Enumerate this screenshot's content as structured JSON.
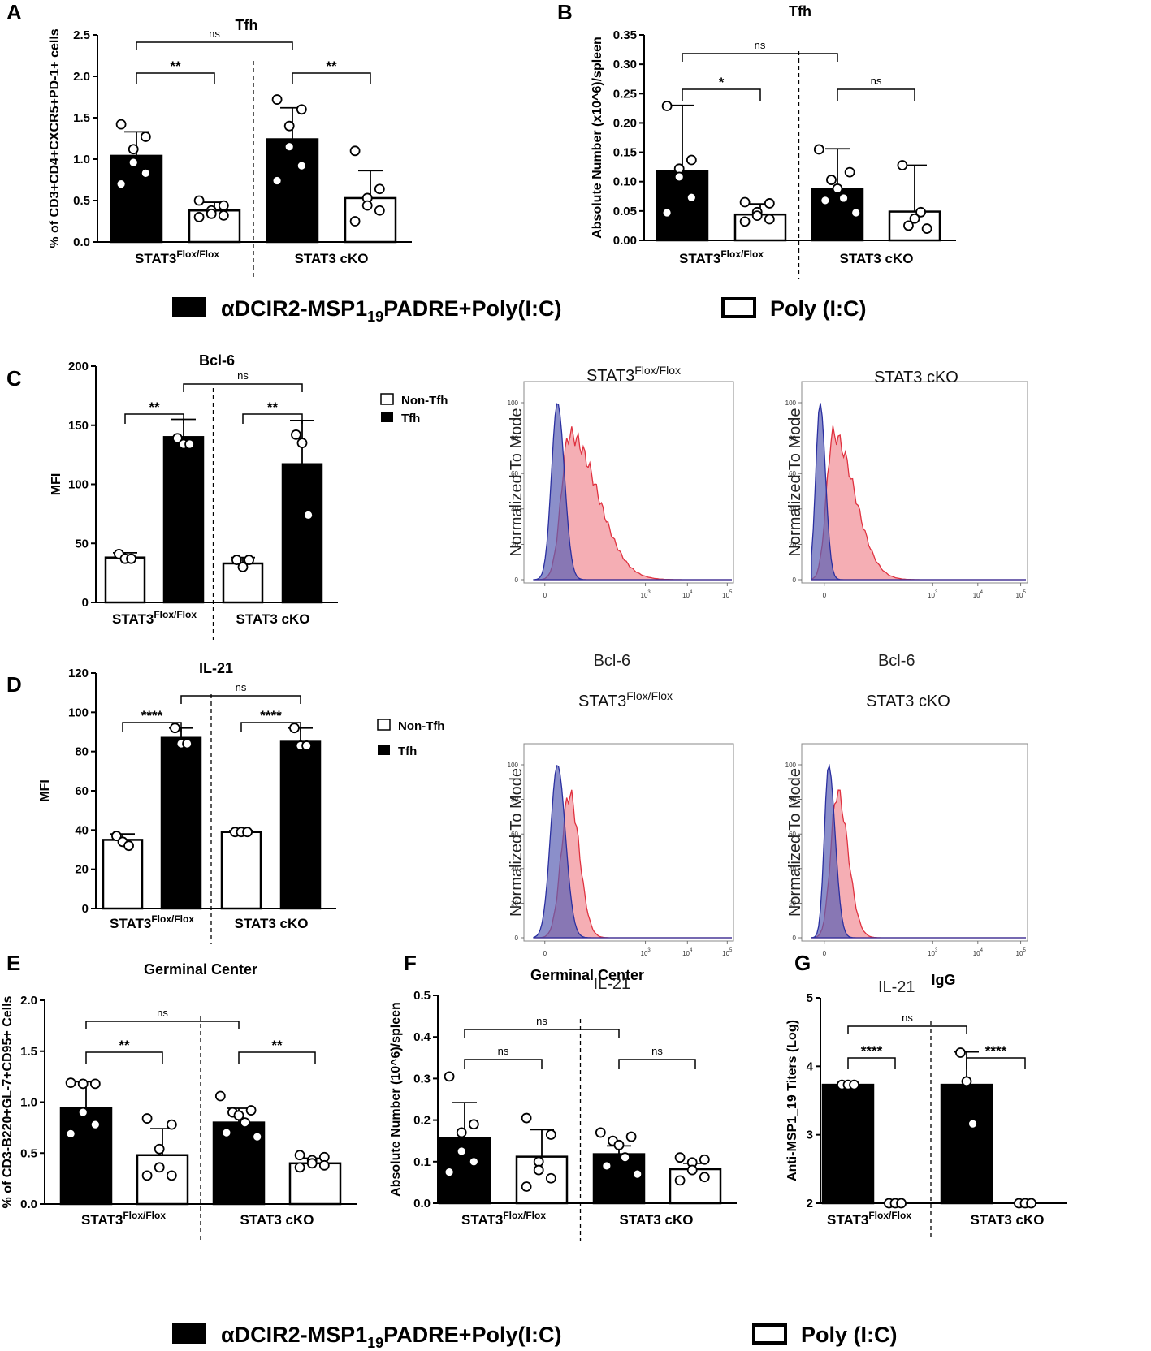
{
  "legend_main": {
    "filled_label": "αDCIR2-MSP1",
    "filled_sub": "19",
    "filled_suffix": "PADRE+Poly(I:C)",
    "open_label": "Poly (I:C)"
  },
  "legend_cd": {
    "open": "Non-Tfh",
    "filled": "Tfh"
  },
  "colors": {
    "bar_filled": "#000000",
    "bar_open": "#ffffff",
    "flow_blue": "#5a5fb3",
    "flow_red": "#f0838c",
    "flow_overlap": "#7b4f8e"
  },
  "chart_data": [
    {
      "id": "A",
      "panel": "A",
      "type": "bar",
      "title": "Tfh",
      "ylabel": "% of CD3+CD4+CXCR5+PD-1+ cells",
      "ylim": [
        0,
        2.5
      ],
      "yticks": [
        "0.0",
        "0.5",
        "1.0",
        "1.5",
        "2.0",
        "2.5"
      ],
      "groups": [
        "STAT3",
        "STAT3 cKO"
      ],
      "group_sup": [
        "Flox/Flox",
        ""
      ],
      "bars": [
        {
          "fill": "black",
          "mean": 1.04,
          "sd": 0.29,
          "points": [
            1.42,
            1.27,
            1.12,
            0.96,
            0.83,
            0.7
          ]
        },
        {
          "fill": "white",
          "mean": 0.38,
          "sd": 0.1,
          "points": [
            0.5,
            0.44,
            0.38,
            0.34,
            0.32,
            0.3
          ]
        },
        {
          "fill": "black",
          "mean": 1.24,
          "sd": 0.38,
          "points": [
            1.72,
            1.6,
            1.4,
            1.15,
            0.92,
            0.74
          ]
        },
        {
          "fill": "white",
          "mean": 0.53,
          "sd": 0.33,
          "points": [
            1.1,
            0.64,
            0.53,
            0.44,
            0.38,
            0.25
          ]
        }
      ],
      "comparisons": [
        {
          "from": 0,
          "to": 1,
          "label": "**"
        },
        {
          "from": 2,
          "to": 3,
          "label": "**"
        },
        {
          "from": 0,
          "to": 2,
          "label": "ns"
        }
      ]
    },
    {
      "id": "B",
      "panel": "B",
      "type": "bar",
      "title": "Tfh",
      "ylabel": "Absolute Number (x10^6)/spleen",
      "ylim": [
        0,
        0.35
      ],
      "yticks": [
        "0.00",
        "0.05",
        "0.10",
        "0.15",
        "0.20",
        "0.25",
        "0.30",
        "0.35"
      ],
      "groups": [
        "STAT3",
        "STAT3 cKO"
      ],
      "group_sup": [
        "Flox/Flox",
        ""
      ],
      "bars": [
        {
          "fill": "black",
          "mean": 0.118,
          "sd": 0.112,
          "points": [
            0.229,
            0.137,
            0.122,
            0.108,
            0.073,
            0.047
          ]
        },
        {
          "fill": "white",
          "mean": 0.044,
          "sd": 0.018,
          "points": [
            0.065,
            0.063,
            0.048,
            0.042,
            0.036,
            0.032
          ]
        },
        {
          "fill": "black",
          "mean": 0.088,
          "sd": 0.068,
          "points": [
            0.155,
            0.116,
            0.103,
            0.088,
            0.072,
            0.068,
            0.047
          ]
        },
        {
          "fill": "white",
          "mean": 0.049,
          "sd": 0.079,
          "points": [
            0.128,
            0.048,
            0.037,
            0.025,
            0.02
          ]
        }
      ],
      "comparisons": [
        {
          "from": 0,
          "to": 1,
          "label": "*"
        },
        {
          "from": 2,
          "to": 3,
          "label": "ns"
        },
        {
          "from": 0,
          "to": 2,
          "label": "ns"
        }
      ]
    },
    {
      "id": "C",
      "panel": "C",
      "type": "bar",
      "title": "Bcl-6",
      "ylabel": "MFI",
      "ylim": [
        0,
        200
      ],
      "yticks": [
        "0",
        "50",
        "100",
        "150",
        "200"
      ],
      "groups": [
        "STAT3",
        "STAT3 cKO"
      ],
      "group_sup": [
        "Flox/Flox",
        ""
      ],
      "bars": [
        {
          "fill": "white",
          "mean": 38,
          "sd": 4,
          "points": [
            41,
            37,
            37
          ]
        },
        {
          "fill": "black",
          "mean": 140,
          "sd": 15,
          "points": [
            139,
            134,
            134
          ]
        },
        {
          "fill": "white",
          "mean": 33,
          "sd": 5,
          "points": [
            36,
            30,
            36
          ]
        },
        {
          "fill": "black",
          "mean": 117,
          "sd": 37,
          "points": [
            142,
            135,
            74
          ]
        }
      ],
      "comparisons": [
        {
          "from": 0,
          "to": 1,
          "label": "**"
        },
        {
          "from": 2,
          "to": 3,
          "label": "**"
        },
        {
          "from": 1,
          "to": 3,
          "label": "ns"
        }
      ]
    },
    {
      "id": "D",
      "panel": "D",
      "type": "bar",
      "title": "IL-21",
      "ylabel": "MFI",
      "ylim": [
        0,
        120
      ],
      "yticks": [
        "0",
        "20",
        "40",
        "60",
        "80",
        "100",
        "120"
      ],
      "groups": [
        "STAT3",
        "STAT3 cKO"
      ],
      "group_sup": [
        "Flox/Flox",
        ""
      ],
      "bars": [
        {
          "fill": "white",
          "mean": 35,
          "sd": 3,
          "points": [
            37,
            34,
            32
          ]
        },
        {
          "fill": "black",
          "mean": 87,
          "sd": 5,
          "points": [
            92,
            84,
            84
          ]
        },
        {
          "fill": "white",
          "mean": 39,
          "sd": 0.7,
          "points": [
            39,
            39,
            39
          ]
        },
        {
          "fill": "black",
          "mean": 85,
          "sd": 7,
          "points": [
            92,
            83,
            83
          ]
        }
      ],
      "comparisons": [
        {
          "from": 0,
          "to": 1,
          "label": "****"
        },
        {
          "from": 2,
          "to": 3,
          "label": "****"
        },
        {
          "from": 1,
          "to": 3,
          "label": "ns"
        }
      ]
    },
    {
      "id": "E",
      "panel": "E",
      "type": "bar",
      "title": "Germinal Center",
      "ylabel": "% of CD3-B220+GL-7+CD95+ Cells",
      "ylim": [
        0,
        2.0
      ],
      "yticks": [
        "0.0",
        "0.5",
        "1.0",
        "1.5",
        "2.0"
      ],
      "groups": [
        "STAT3",
        "STAT3 cKO"
      ],
      "group_sup": [
        "Flox/Flox",
        ""
      ],
      "bars": [
        {
          "fill": "black",
          "mean": 0.94,
          "sd": 0.26,
          "points": [
            1.19,
            1.18,
            1.18,
            0.9,
            0.78,
            0.69
          ]
        },
        {
          "fill": "white",
          "mean": 0.48,
          "sd": 0.26,
          "points": [
            0.84,
            0.78,
            0.54,
            0.36,
            0.28,
            0.28
          ]
        },
        {
          "fill": "black",
          "mean": 0.8,
          "sd": 0.14,
          "points": [
            1.06,
            0.92,
            0.9,
            0.87,
            0.8,
            0.7,
            0.66
          ]
        },
        {
          "fill": "white",
          "mean": 0.4,
          "sd": 0.05,
          "points": [
            0.48,
            0.46,
            0.43,
            0.4,
            0.38,
            0.36
          ]
        }
      ],
      "comparisons": [
        {
          "from": 0,
          "to": 1,
          "label": "**"
        },
        {
          "from": 2,
          "to": 3,
          "label": "**"
        },
        {
          "from": 0,
          "to": 2,
          "label": "ns"
        }
      ]
    },
    {
      "id": "F",
      "panel": "F",
      "type": "bar",
      "title": "Germinal Center",
      "ylabel": "Absolute Number (10^6)/spleen",
      "ylim": [
        0,
        0.5
      ],
      "yticks": [
        "0.0",
        "0.1",
        "0.2",
        "0.3",
        "0.4",
        "0.5"
      ],
      "groups": [
        "STAT3",
        "STAT3 cKO"
      ],
      "group_sup": [
        "Flox/Flox",
        ""
      ],
      "bars": [
        {
          "fill": "black",
          "mean": 0.157,
          "sd": 0.085,
          "points": [
            0.305,
            0.19,
            0.17,
            0.125,
            0.1,
            0.075
          ]
        },
        {
          "fill": "white",
          "mean": 0.112,
          "sd": 0.065,
          "points": [
            0.205,
            0.165,
            0.1,
            0.08,
            0.06,
            0.04
          ]
        },
        {
          "fill": "black",
          "mean": 0.118,
          "sd": 0.02,
          "points": [
            0.17,
            0.16,
            0.15,
            0.14,
            0.11,
            0.09,
            0.07
          ]
        },
        {
          "fill": "white",
          "mean": 0.082,
          "sd": 0.014,
          "points": [
            0.11,
            0.105,
            0.098,
            0.08,
            0.063,
            0.055
          ]
        }
      ],
      "comparisons": [
        {
          "from": 0,
          "to": 1,
          "label": "ns"
        },
        {
          "from": 2,
          "to": 3,
          "label": "ns"
        },
        {
          "from": 0,
          "to": 2,
          "label": "ns"
        }
      ]
    },
    {
      "id": "G",
      "panel": "G",
      "type": "bar",
      "title": "IgG",
      "ylabel": "Anti-MSP1_19 Titers (Log)",
      "ylim": [
        2,
        5
      ],
      "yticks": [
        "2",
        "3",
        "4",
        "5"
      ],
      "groups": [
        "STAT3",
        "STAT3 cKO"
      ],
      "group_sup": [
        "Flox/Flox",
        ""
      ],
      "bars": [
        {
          "fill": "black",
          "mean": 3.73,
          "sd": 0,
          "points": [
            3.73,
            3.73,
            3.73
          ]
        },
        {
          "fill": "white",
          "mean": 2.0,
          "sd": 0,
          "points": [
            2.0,
            2.0,
            2.0
          ]
        },
        {
          "fill": "black",
          "mean": 3.73,
          "sd": 0.48,
          "points": [
            4.2,
            3.78,
            3.16
          ]
        },
        {
          "fill": "white",
          "mean": 2.0,
          "sd": 0,
          "points": [
            2.0,
            2.0,
            2.0
          ]
        }
      ],
      "comparisons": [
        {
          "from": 0,
          "to": 1,
          "label": "****"
        },
        {
          "from": 2,
          "to": 3,
          "label": "****"
        },
        {
          "from": 0,
          "to": 2,
          "label": "ns"
        }
      ]
    },
    {
      "id": "C-hist-flox",
      "type": "histogram-overlay",
      "title": "STAT3",
      "title_sup": "Flox/Flox",
      "ylabel": "Normalized To Mode",
      "xlabel": "Bcl-6",
      "yticks": [
        "0",
        "20",
        "40",
        "60",
        "80",
        "100"
      ],
      "xticks": [
        "0",
        "10",
        "10",
        "10"
      ],
      "xtick_sup": [
        "",
        "3",
        "4",
        "5"
      ],
      "series": [
        {
          "name": "Non-Tfh",
          "color": "blue"
        },
        {
          "name": "Tfh",
          "color": "red"
        }
      ]
    },
    {
      "id": "C-hist-cko",
      "type": "histogram-overlay",
      "title": "STAT3 cKO",
      "title_sup": "",
      "ylabel": "Normalized To Mode",
      "xlabel": "Bcl-6",
      "yticks": [
        "0",
        "20",
        "40",
        "60",
        "80",
        "100"
      ],
      "xticks": [
        "0",
        "10",
        "10",
        "10"
      ],
      "xtick_sup": [
        "",
        "3",
        "4",
        "5"
      ],
      "series": [
        {
          "name": "Non-Tfh",
          "color": "blue"
        },
        {
          "name": "Tfh",
          "color": "red"
        }
      ]
    },
    {
      "id": "D-hist-flox",
      "type": "histogram-overlay",
      "title": "STAT3",
      "title_sup": "Flox/Flox",
      "ylabel": "Normalized To Mode",
      "xlabel": "IL-21",
      "yticks": [
        "0",
        "20",
        "40",
        "60",
        "80",
        "100"
      ],
      "xticks": [
        "0",
        "10",
        "10",
        "10"
      ],
      "xtick_sup": [
        "",
        "3",
        "4",
        "5"
      ],
      "series": [
        {
          "name": "Non-Tfh",
          "color": "blue"
        },
        {
          "name": "Tfh",
          "color": "red"
        }
      ]
    },
    {
      "id": "D-hist-cko",
      "type": "histogram-overlay",
      "title": "STAT3 cKO",
      "title_sup": "",
      "ylabel": "Normalized To Mode",
      "xlabel": "IL-21",
      "yticks": [
        "0",
        "20",
        "40",
        "60",
        "80",
        "100"
      ],
      "xticks": [
        "0",
        "10",
        "10",
        "10"
      ],
      "xtick_sup": [
        "",
        "3",
        "4",
        "5"
      ],
      "series": [
        {
          "name": "Non-Tfh",
          "color": "blue"
        },
        {
          "name": "Tfh",
          "color": "red"
        }
      ]
    }
  ]
}
